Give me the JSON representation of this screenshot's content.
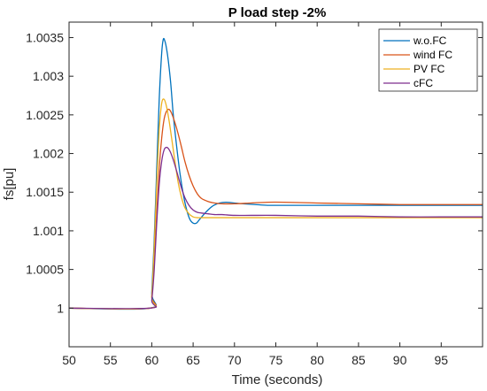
{
  "chart_data": {
    "type": "line",
    "title": "P load step -2%",
    "xlabel": "Time (seconds)",
    "ylabel": "fs[pu]",
    "xlim": [
      50,
      100
    ],
    "ylim": [
      0.9995,
      1.0037
    ],
    "xticks": [
      50,
      55,
      60,
      65,
      70,
      75,
      80,
      85,
      90,
      95
    ],
    "xtick_labels": [
      "50",
      "55",
      "60",
      "65",
      "70",
      "75",
      "80",
      "85",
      "90",
      "95"
    ],
    "yticks": [
      1,
      1.0005,
      1.001,
      1.0015,
      1.002,
      1.0025,
      1.003,
      1.0035
    ],
    "ytick_labels": [
      "1",
      "1.0005",
      "1.001",
      "1.0015",
      "1.002",
      "1.0025",
      "1.003",
      "1.0035"
    ],
    "grid": false,
    "legend_position": "top-right",
    "series": [
      {
        "name": "w.o.FC",
        "color": "#0072BD",
        "x": [
          50,
          59.8,
          60,
          60.3,
          60.6,
          60.9,
          61.2,
          61.4,
          61.6,
          61.8,
          62.0,
          62.3,
          62.6,
          63.0,
          63.4,
          63.8,
          64.2,
          64.6,
          65.0,
          65.4,
          65.8,
          66.2,
          66.8,
          67.5,
          68.2,
          69.0,
          70.0,
          71.0,
          72.5,
          74,
          76,
          80,
          85,
          90,
          95,
          100
        ],
        "y": [
          1.0,
          1.0,
          1.0002,
          1.0009,
          1.0018,
          1.0027,
          1.0033,
          1.00348,
          1.00345,
          1.00335,
          1.0032,
          1.0029,
          1.0025,
          1.0021,
          1.00175,
          1.00148,
          1.00128,
          1.00115,
          1.0011,
          1.0011,
          1.00115,
          1.0012,
          1.00127,
          1.00133,
          1.00136,
          1.00137,
          1.00136,
          1.00135,
          1.00134,
          1.00133,
          1.00133,
          1.00133,
          1.00133,
          1.00133,
          1.00133,
          1.00133
        ]
      },
      {
        "name": "wind FC",
        "color": "#D95319",
        "x": [
          50,
          59.8,
          60,
          60.3,
          60.6,
          60.9,
          61.2,
          61.5,
          61.8,
          62.1,
          62.4,
          62.8,
          63.2,
          63.6,
          64.0,
          64.5,
          65.0,
          65.5,
          66.0,
          66.8,
          67.6,
          68.5,
          70,
          72,
          74,
          76,
          80,
          85,
          90,
          95,
          100
        ],
        "y": [
          1.0,
          1.0,
          1.00015,
          1.0006,
          1.0012,
          1.0018,
          1.0022,
          1.00245,
          1.00255,
          1.00257,
          1.00252,
          1.0024,
          1.00225,
          1.00208,
          1.0019,
          1.00172,
          1.00158,
          1.00148,
          1.00142,
          1.00138,
          1.00136,
          1.00135,
          1.00135,
          1.00136,
          1.00137,
          1.00137,
          1.00136,
          1.00135,
          1.00134,
          1.00134,
          1.00134
        ]
      },
      {
        "name": "PV FC",
        "color": "#EDB120",
        "x": [
          50,
          59.8,
          60,
          60.3,
          60.6,
          60.9,
          61.2,
          61.5,
          61.8,
          62.1,
          62.4,
          62.8,
          63.2,
          63.6,
          64.0,
          64.5,
          65.0,
          65.5,
          66.0,
          66.8,
          67.6,
          69,
          71,
          75,
          80,
          85,
          90,
          95,
          100
        ],
        "y": [
          1.0,
          1.0,
          1.00015,
          1.0008,
          1.0016,
          1.0023,
          1.00265,
          1.0027,
          1.0026,
          1.00242,
          1.0022,
          1.0019,
          1.00162,
          1.00143,
          1.0013,
          1.00122,
          1.00118,
          1.00117,
          1.00117,
          1.00117,
          1.00117,
          1.00117,
          1.00117,
          1.00117,
          1.00117,
          1.00117,
          1.00117,
          1.00117,
          1.00117
        ]
      },
      {
        "name": "cFC",
        "color": "#7E2F8E",
        "x": [
          50,
          59.8,
          60,
          60.3,
          60.6,
          60.9,
          61.2,
          61.5,
          61.8,
          62.1,
          62.4,
          62.8,
          63.2,
          63.6,
          64.0,
          64.5,
          65.0,
          65.5,
          66.0,
          66.8,
          67.6,
          68.5,
          70,
          72,
          75,
          80,
          85,
          90,
          95,
          100
        ],
        "y": [
          1.0,
          1.0,
          1.0001,
          1.0005,
          1.0011,
          1.0016,
          1.0019,
          1.00205,
          1.00208,
          1.00205,
          1.00198,
          1.00185,
          1.0017,
          1.00155,
          1.00143,
          1.00133,
          1.00127,
          1.00124,
          1.00123,
          1.00122,
          1.00121,
          1.00121,
          1.0012,
          1.0012,
          1.0012,
          1.00119,
          1.00119,
          1.00118,
          1.00118,
          1.00118
        ]
      }
    ]
  }
}
